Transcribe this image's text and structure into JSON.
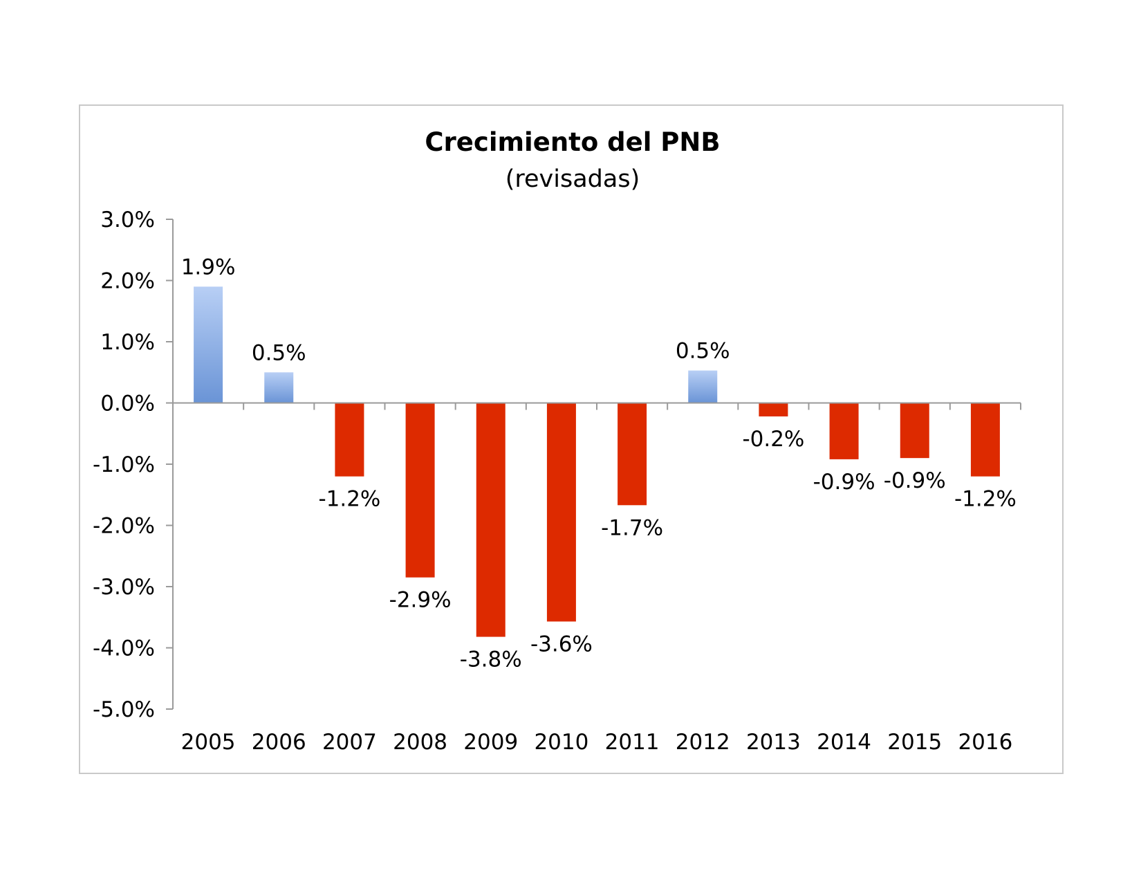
{
  "chart_data": {
    "type": "bar",
    "title": "Crecimiento del PNB",
    "subtitle": "(revisadas)",
    "categories": [
      "2005",
      "2006",
      "2007",
      "2008",
      "2009",
      "2010",
      "2011",
      "2012",
      "2013",
      "2014",
      "2015",
      "2016"
    ],
    "values": [
      1.9,
      0.5,
      -1.2,
      -2.85,
      -3.82,
      -3.57,
      -1.67,
      0.53,
      -0.22,
      -0.92,
      -0.9,
      -1.2
    ],
    "data_labels": [
      "1.9%",
      "0.5%",
      "-1.2%",
      "-2.9%",
      "-3.8%",
      "-3.6%",
      "-1.7%",
      "0.5%",
      "-0.2%",
      "-0.9%",
      "-0.9%",
      "-1.2%"
    ],
    "yticks": [
      3,
      2,
      1,
      0,
      -1,
      -2,
      -3,
      -4,
      -5
    ],
    "ytick_labels": [
      "3.0%",
      "2.0%",
      "1.0%",
      "0.0%",
      "-1.0%",
      "-2.0%",
      "-3.0%",
      "-4.0%",
      "-5.0%"
    ],
    "ylim": [
      -5,
      3
    ],
    "xlabel": "",
    "ylabel": "",
    "grid": false,
    "legend": false,
    "colors": {
      "positive_top": "#b8cff5",
      "positive_bottom": "#6a94d6",
      "negative": "#dd2a00",
      "axis": "#9a9a9a",
      "frame": "#c9c9c9"
    }
  }
}
